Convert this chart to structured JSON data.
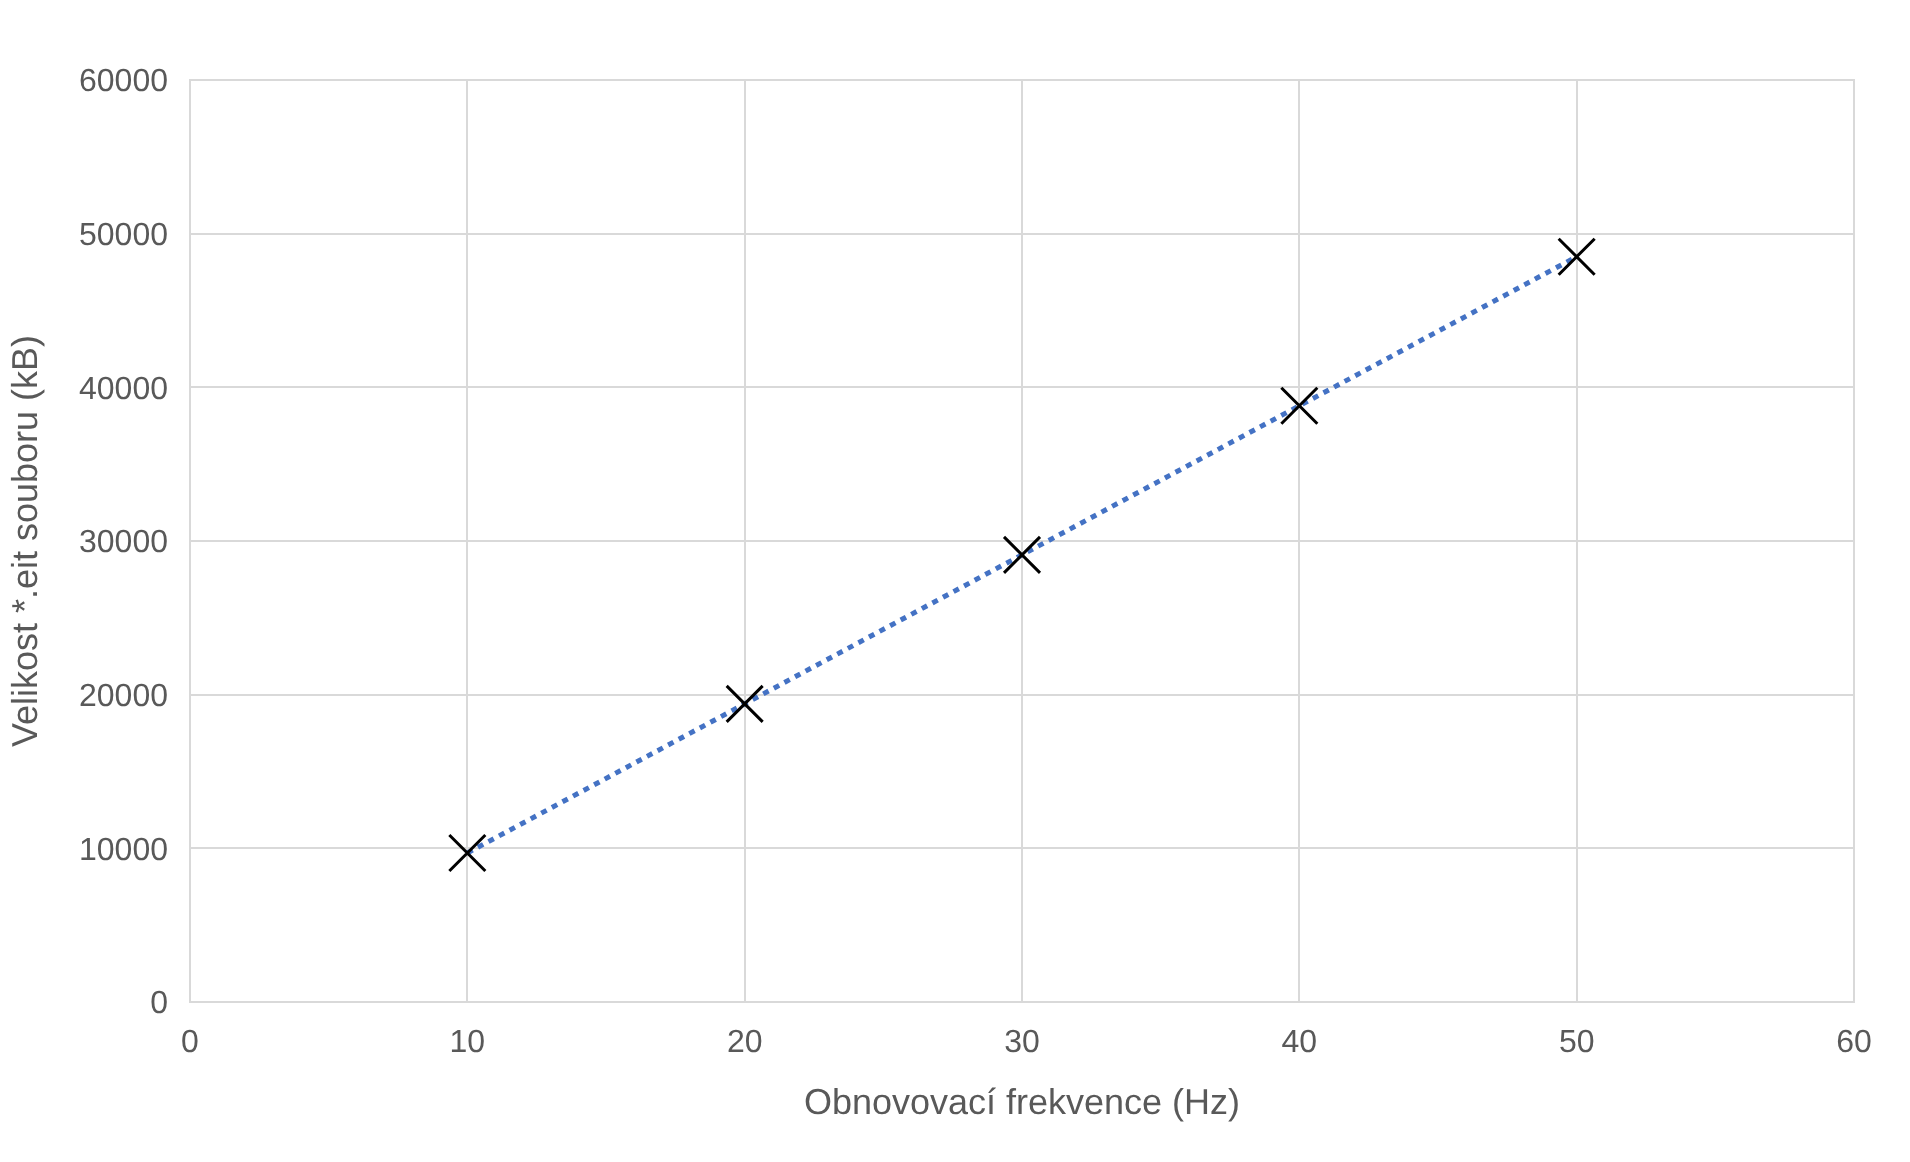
{
  "chart_data": {
    "type": "scatter",
    "xlabel": "Obnovovací frekvence (Hz)",
    "ylabel": "Velikost *.eit souboru (kB)",
    "x": [
      10,
      20,
      30,
      40,
      50
    ],
    "series": [
      {
        "type": "line",
        "color": "#4472c4",
        "line_style": "dotted",
        "marker": "none",
        "values": [
          9700,
          19400,
          29100,
          38800,
          48500
        ]
      },
      {
        "color": "#000000",
        "marker": "cross",
        "values": [
          9700,
          19400,
          29100,
          38800,
          48500
        ]
      }
    ],
    "xlim": [
      0,
      60
    ],
    "xticks": [
      0,
      10,
      20,
      30,
      40,
      50,
      60
    ],
    "ylim": [
      0,
      60000
    ],
    "yticks": [
      0,
      10000,
      20000,
      30000,
      40000,
      50000,
      60000
    ],
    "grid": true
  }
}
